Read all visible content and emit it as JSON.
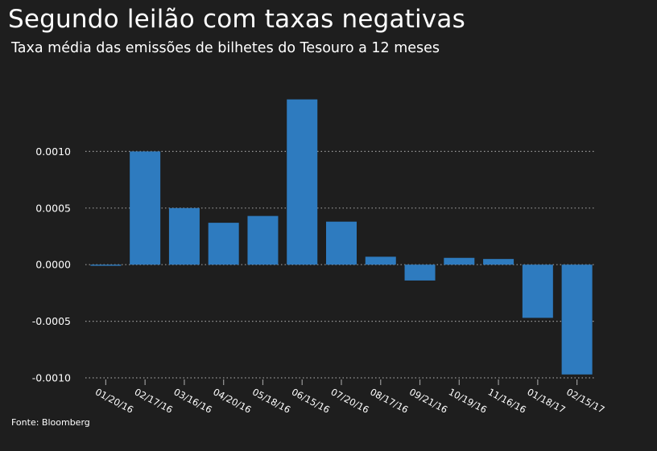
{
  "title": "Segundo leilão com taxas negativas",
  "subtitle": "Taxa média das emissões de bilhetes do Tesouro a 12 meses",
  "source": "Fonte: Bloomberg",
  "colors": {
    "background": "#1e1e1e",
    "bar": "#2e7bbf",
    "grid": "#9a9a9a",
    "text": "#ffffff"
  },
  "chart_data": {
    "type": "bar",
    "title": "Segundo leilão com taxas negativas",
    "subtitle": "Taxa média das emissões de bilhetes do Tesouro a 12 meses",
    "categories": [
      "01/20/16",
      "02/17/16",
      "03/16/16",
      "04/20/16",
      "05/18/16",
      "06/15/16",
      "07/20/16",
      "08/17/16",
      "09/21/16",
      "10/19/16",
      "11/16/16",
      "01/18/17",
      "02/15/17"
    ],
    "values": [
      -1e-05,
      0.001,
      0.0005,
      0.00037,
      0.00043,
      0.00146,
      0.00038,
      7e-05,
      -0.00014,
      6e-05,
      5e-05,
      -0.00047,
      -0.00097
    ],
    "ylim": [
      -0.001,
      0.0015
    ],
    "yticks": [
      0.001,
      0.0005,
      0.0,
      -0.0005,
      -0.001
    ],
    "ytick_labels": [
      "0.0010",
      "0.0005",
      "0.0000",
      "-0.0005",
      "-0.0010"
    ],
    "grid": true,
    "xlabel": "",
    "ylabel": ""
  }
}
